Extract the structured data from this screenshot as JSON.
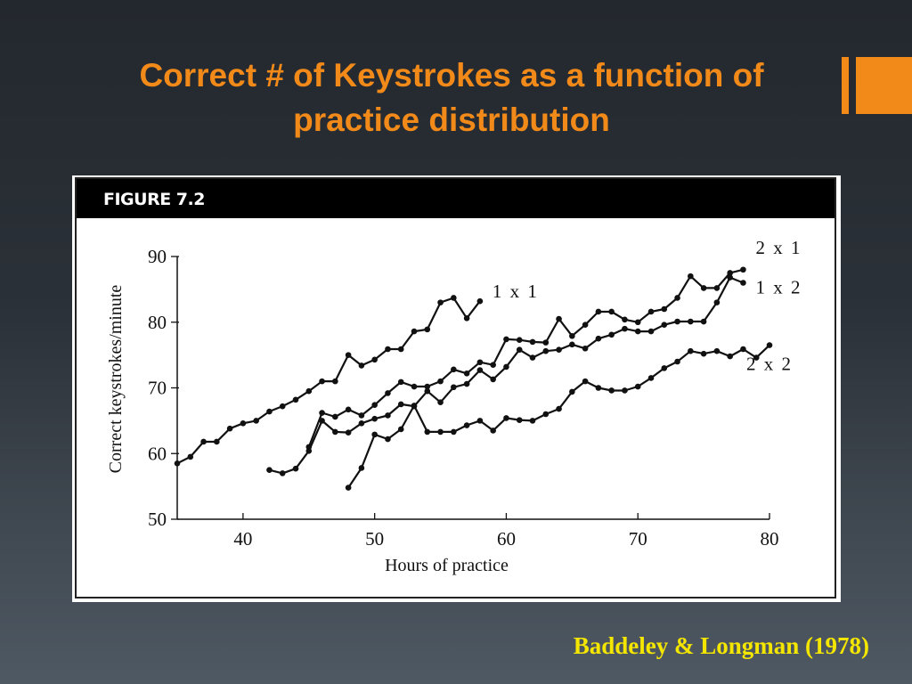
{
  "slide": {
    "title_line1": "Correct # of Keystrokes as a function of",
    "title_line2": "practice distribution",
    "citation": "Baddeley & Longman (1978)",
    "accent_color": "#f28a1a",
    "citation_color": "#f5e600"
  },
  "figure": {
    "label": "FIGURE 7.2"
  },
  "chart_data": {
    "type": "line",
    "title": "",
    "xlabel": "Hours of practice",
    "ylabel": "Correct keystrokes/minute",
    "xlim": [
      35,
      80
    ],
    "ylim": [
      50,
      90
    ],
    "xticks": [
      40,
      50,
      60,
      70,
      80
    ],
    "yticks": [
      50,
      60,
      70,
      80,
      90
    ],
    "grid": false,
    "series": [
      {
        "name": "1 x 1",
        "x": [
          35,
          36,
          37,
          38,
          39,
          40,
          41,
          42,
          43,
          44,
          45,
          46,
          47,
          48,
          49,
          50,
          51,
          52,
          53,
          54,
          55,
          56,
          57,
          58
        ],
        "y": [
          58.5,
          59.5,
          61.8,
          61.8,
          63.8,
          64.6,
          65.0,
          66.4,
          67.2,
          68.2,
          69.5,
          71.0,
          71.0,
          75.0,
          73.4,
          74.3,
          75.9,
          75.9,
          78.6,
          78.9,
          83.0,
          83.7,
          80.6,
          83.2
        ]
      },
      {
        "name": "2 x 1",
        "x": [
          45,
          46,
          47,
          48,
          49,
          50,
          51,
          52,
          53,
          54,
          55,
          56,
          57,
          58,
          59,
          60,
          61,
          62,
          63,
          64,
          65,
          66,
          67,
          68,
          69,
          70,
          71,
          72,
          73,
          74,
          75,
          76,
          77,
          78
        ],
        "y": [
          61.0,
          66.2,
          65.6,
          66.7,
          65.8,
          67.4,
          69.2,
          70.9,
          70.2,
          70.2,
          71.0,
          72.8,
          72.2,
          73.9,
          73.5,
          77.4,
          77.3,
          77.0,
          76.9,
          80.5,
          77.9,
          79.6,
          81.6,
          81.6,
          80.4,
          80.0,
          81.6,
          82.0,
          83.7,
          87.0,
          85.2,
          85.2,
          87.5,
          88.0
        ]
      },
      {
        "name": "1 x 2",
        "x": [
          42,
          43,
          44,
          45,
          46,
          47,
          48,
          49,
          50,
          51,
          52,
          53,
          54,
          55,
          56,
          57,
          58,
          59,
          60,
          61,
          62,
          63,
          64,
          65,
          66,
          67,
          68,
          69,
          70,
          71,
          72,
          73,
          74,
          75,
          76,
          77,
          78
        ],
        "y": [
          57.5,
          57.0,
          57.7,
          60.4,
          65.0,
          63.3,
          63.2,
          64.6,
          65.3,
          65.8,
          67.5,
          67.2,
          69.5,
          67.8,
          70.1,
          70.6,
          72.7,
          71.3,
          73.2,
          75.8,
          74.6,
          75.6,
          75.8,
          76.6,
          76.0,
          77.5,
          78.1,
          79.0,
          78.6,
          78.6,
          79.6,
          80.1,
          80.1,
          80.1,
          83.0,
          86.8,
          86.0
        ]
      },
      {
        "name": "2 x 2",
        "x": [
          48,
          49,
          50,
          51,
          52,
          53,
          54,
          55,
          56,
          57,
          58,
          59,
          60,
          61,
          62,
          63,
          64,
          65,
          66,
          67,
          68,
          69,
          70,
          71,
          72,
          73,
          74,
          75,
          76,
          77,
          78,
          79,
          80
        ],
        "y": [
          54.8,
          57.8,
          62.9,
          62.2,
          63.7,
          67.3,
          63.3,
          63.3,
          63.3,
          64.3,
          65.0,
          63.5,
          65.4,
          65.1,
          65.0,
          66.0,
          66.8,
          69.4,
          71.0,
          70.0,
          69.6,
          69.6,
          70.2,
          71.5,
          73.0,
          74.0,
          75.6,
          75.2,
          75.6,
          74.8,
          75.9,
          74.6,
          76.5
        ]
      }
    ]
  }
}
